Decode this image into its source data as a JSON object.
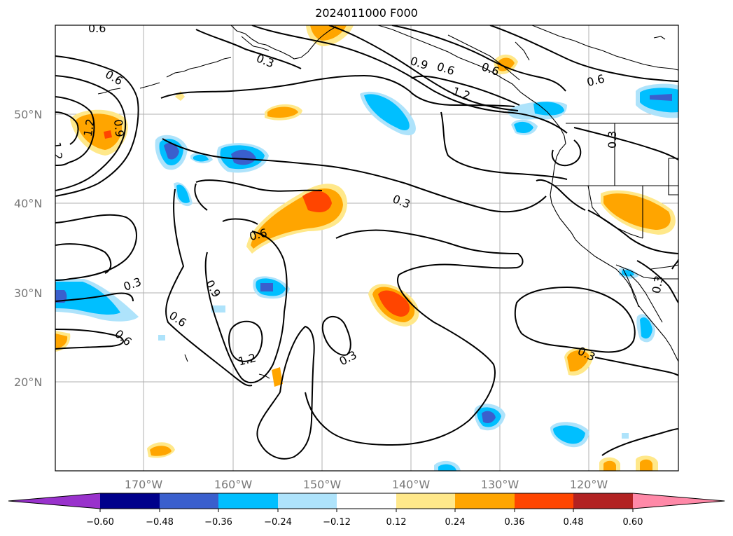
{
  "title": "2024011000 F000",
  "map": {
    "lat_labels": [
      "50°N",
      "40°N",
      "30°N",
      "20°N"
    ],
    "lon_labels": [
      "170°W",
      "160°W",
      "150°W",
      "140°W",
      "130°W",
      "120°W"
    ],
    "contour_labels": [
      "0.6",
      "0.3",
      "0.9",
      "0.6",
      "1.2",
      "0.6",
      "0.6",
      "1.2",
      "1.2",
      "0.9",
      "0.3",
      "0.3",
      "0.6",
      "0.3",
      "0.9",
      "0.6",
      "1.2",
      "0.3",
      "0.6",
      "0.3",
      "0.3",
      "0.6"
    ]
  },
  "colorbar": {
    "ticks": [
      "−0.60",
      "−0.48",
      "−0.36",
      "−0.24",
      "−0.12",
      "0.12",
      "0.24",
      "0.36",
      "0.48",
      "0.60"
    ],
    "colors": [
      "#9932cc",
      "#00008b",
      "#3a5fcd",
      "#00bfff",
      "#aee3fb",
      "#ffffff",
      "#ffe88a",
      "#ffa500",
      "#ff4500",
      "#b22222",
      "#ff89a8"
    ],
    "extend": "both"
  }
}
